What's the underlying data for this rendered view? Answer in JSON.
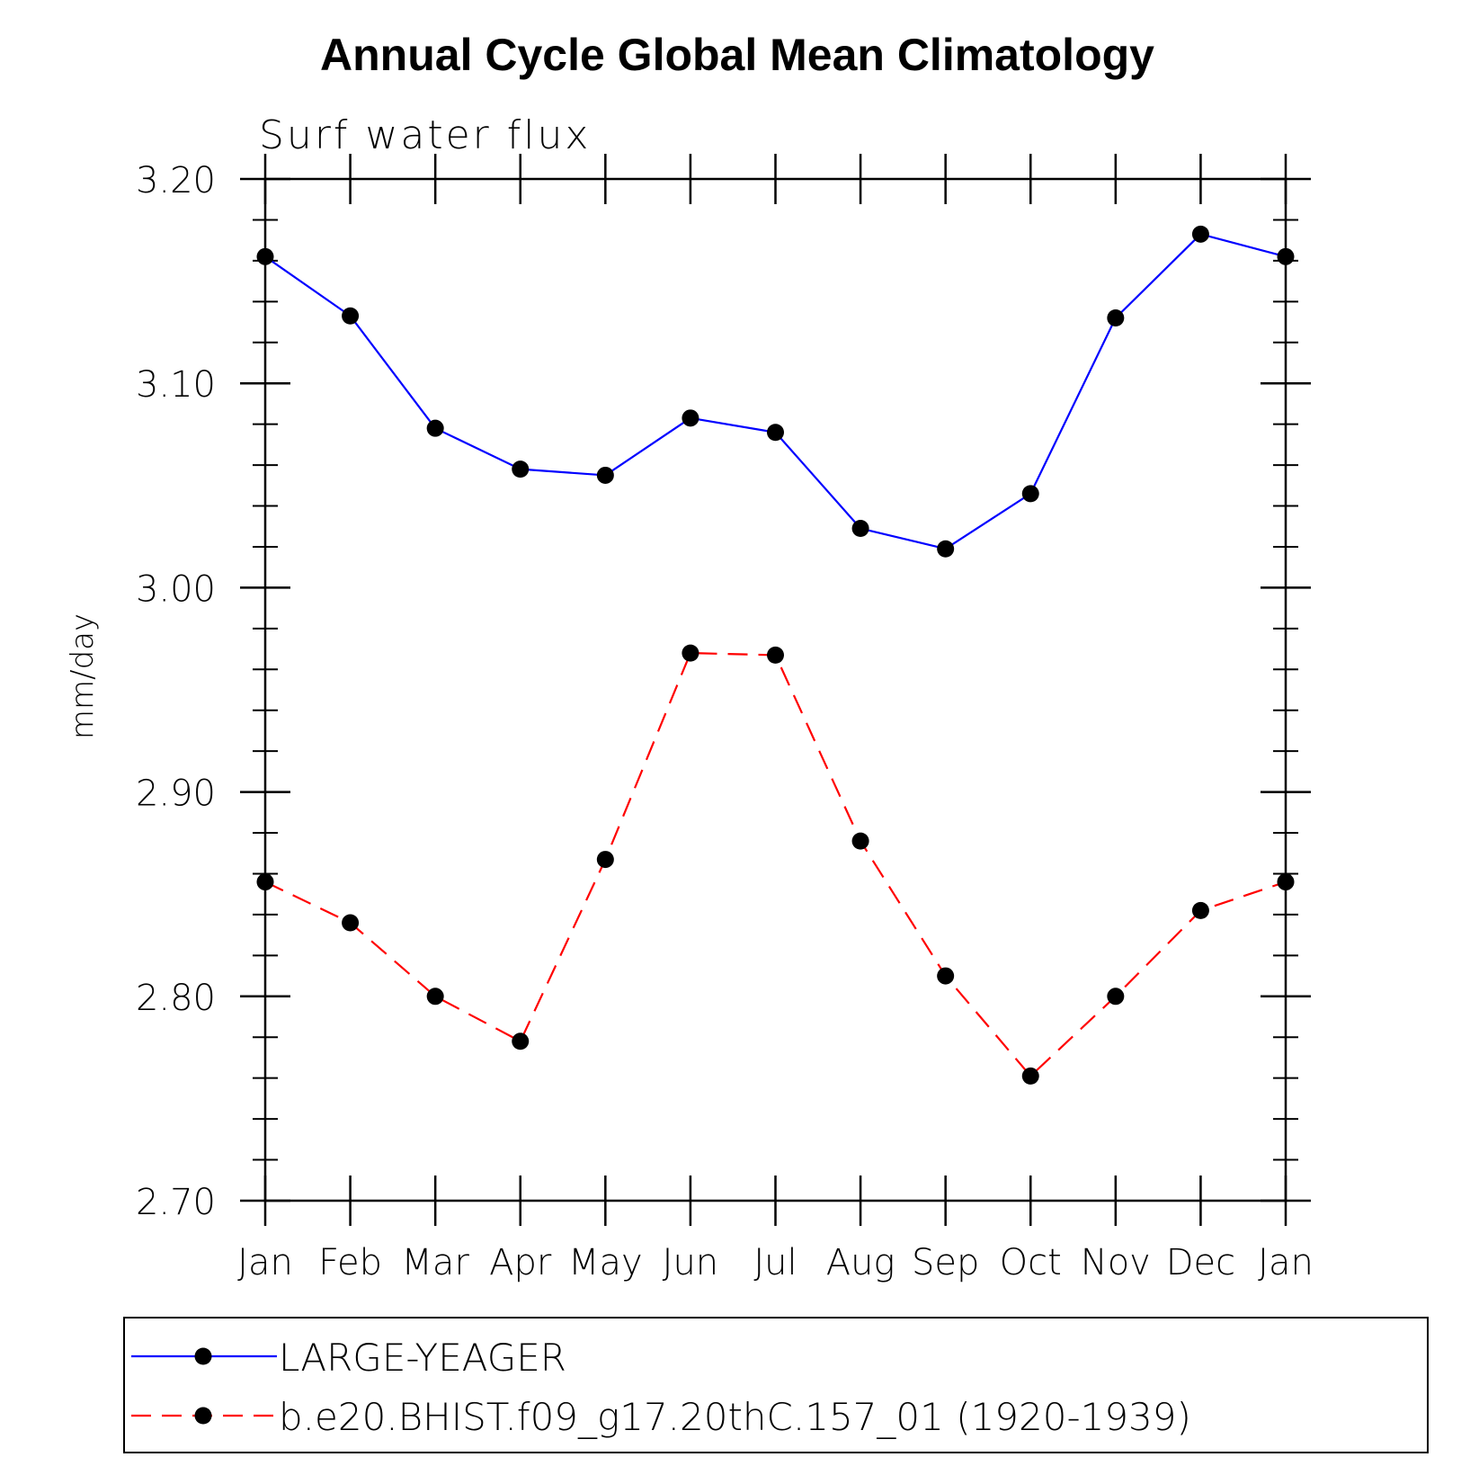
{
  "chart_data": {
    "type": "line",
    "title": "Annual Cycle Global Mean Climatology",
    "subtitle": "Surf water flux",
    "xlabel": "",
    "ylabel": "mm/day",
    "categories": [
      "Jan",
      "Feb",
      "Mar",
      "Apr",
      "May",
      "Jun",
      "Jul",
      "Aug",
      "Sep",
      "Oct",
      "Nov",
      "Dec",
      "Jan"
    ],
    "ylim": [
      2.7,
      3.2
    ],
    "yticks": [
      "2.70",
      "2.80",
      "2.90",
      "3.00",
      "3.10",
      "3.20"
    ],
    "grid": false,
    "legend_position": "bottom",
    "series": [
      {
        "name": "LARGE-YEAGER",
        "color": "#0000ff",
        "line_style": "solid",
        "marker": "filled-circle",
        "values": [
          3.162,
          3.133,
          3.078,
          3.058,
          3.055,
          3.083,
          3.076,
          3.029,
          3.019,
          3.046,
          3.132,
          3.173,
          3.162
        ]
      },
      {
        "name": "b.e20.BHIST.f09_g17.20thC.157_01 (1920-1939)",
        "color": "#ff0000",
        "line_style": "dashed",
        "marker": "filled-circle",
        "values": [
          2.856,
          2.836,
          2.8,
          2.778,
          2.867,
          2.968,
          2.967,
          2.876,
          2.81,
          2.761,
          2.8,
          2.842,
          2.856
        ]
      }
    ]
  }
}
